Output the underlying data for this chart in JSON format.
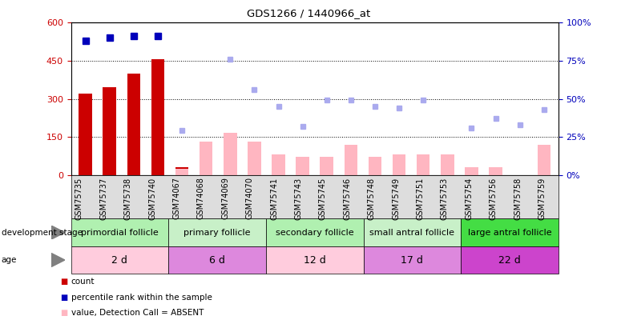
{
  "title": "GDS1266 / 1440966_at",
  "samples": [
    "GSM75735",
    "GSM75737",
    "GSM75738",
    "GSM75740",
    "GSM74067",
    "GSM74068",
    "GSM74069",
    "GSM74070",
    "GSM75741",
    "GSM75743",
    "GSM75745",
    "GSM75746",
    "GSM75748",
    "GSM75749",
    "GSM75751",
    "GSM75753",
    "GSM75754",
    "GSM75756",
    "GSM75758",
    "GSM75759"
  ],
  "count_values": [
    320,
    345,
    400,
    455,
    30,
    0,
    0,
    0,
    0,
    0,
    0,
    0,
    0,
    0,
    0,
    0,
    0,
    0,
    0,
    0
  ],
  "absent_value_bars": [
    0,
    0,
    0,
    0,
    25,
    130,
    165,
    130,
    80,
    70,
    70,
    120,
    70,
    80,
    80,
    80,
    30,
    30,
    0,
    120
  ],
  "percentile_rank_present": [
    88,
    90,
    91,
    91.5,
    0,
    0,
    0,
    0,
    0,
    0,
    0,
    0,
    0,
    0,
    0,
    0,
    0,
    0,
    0,
    0
  ],
  "absent_rank_values": [
    0,
    0,
    0,
    0,
    29,
    0,
    76,
    56,
    45,
    32,
    49,
    49,
    45,
    44,
    49,
    0,
    31,
    37,
    33,
    43
  ],
  "groups": [
    {
      "label": "primordial follicle",
      "start": 0,
      "end": 4,
      "color": "#b0f0b0"
    },
    {
      "label": "primary follicle",
      "start": 4,
      "end": 8,
      "color": "#c8f0c8"
    },
    {
      "label": "secondary follicle",
      "start": 8,
      "end": 12,
      "color": "#b0f0b0"
    },
    {
      "label": "small antral follicle",
      "start": 12,
      "end": 16,
      "color": "#c8f0c8"
    },
    {
      "label": "large antral follicle",
      "start": 16,
      "end": 20,
      "color": "#44dd44"
    }
  ],
  "age_groups": [
    {
      "label": "2 d",
      "start": 0,
      "end": 4,
      "color": "#ffccdd"
    },
    {
      "label": "6 d",
      "start": 4,
      "end": 8,
      "color": "#dd88dd"
    },
    {
      "label": "12 d",
      "start": 8,
      "end": 12,
      "color": "#ffccdd"
    },
    {
      "label": "17 d",
      "start": 12,
      "end": 16,
      "color": "#dd88dd"
    },
    {
      "label": "22 d",
      "start": 16,
      "end": 20,
      "color": "#cc44cc"
    }
  ],
  "ylim_left": [
    0,
    600
  ],
  "ylim_right": [
    0,
    100
  ],
  "yticks_left": [
    0,
    150,
    300,
    450,
    600
  ],
  "yticks_right": [
    0,
    25,
    50,
    75,
    100
  ],
  "bar_width": 0.55,
  "count_color": "#CC0000",
  "absent_value_color": "#FFB6C1",
  "present_rank_color": "#0000BB",
  "absent_rank_color": "#AAAAEE",
  "background_color": "#FFFFFF",
  "grid_color": "#000000",
  "xtick_bg_color": "#DDDDDD",
  "ticker_label_fontsize": 7,
  "group_label_fontsize": 8
}
